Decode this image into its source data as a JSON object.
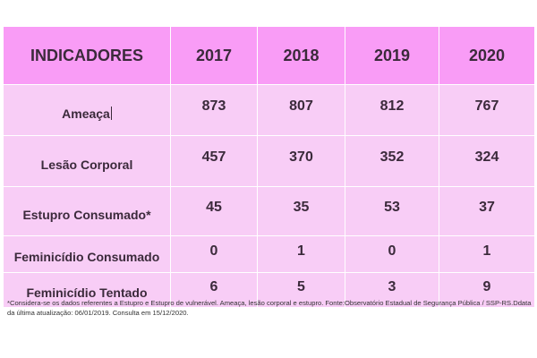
{
  "table": {
    "headers": [
      "INDICADORES",
      "2017",
      "2018",
      "2019",
      "2020"
    ],
    "rows": [
      {
        "label": "Ameaça",
        "values": [
          "873",
          "807",
          "812",
          "767"
        ]
      },
      {
        "label": "Lesão Corporal",
        "values": [
          "457",
          "370",
          "352",
          "324"
        ]
      },
      {
        "label": "Estupro Consumado*",
        "values": [
          "45",
          "35",
          "53",
          "37"
        ]
      },
      {
        "label": "Feminicídio Consumado",
        "values": [
          "0",
          "1",
          "0",
          "1"
        ]
      },
      {
        "label": "Feminicídio Tentado",
        "values": [
          "6",
          "5",
          "3",
          "9"
        ]
      }
    ]
  },
  "footnote": "*Considera-se os dados referentes a Estupro e Estupro de vulnerável. Ameaça, lesão corporal e estupro. Fonte:Observatório Estadual de Segurança Pública / SSP-RS.Ddata da última atualização: 06/01/2019. Consulta em 15/12/2020.",
  "colors": {
    "header_bg": "#f99cf6",
    "row_bg": "#f8cdf6",
    "text": "#3b2a3b"
  }
}
